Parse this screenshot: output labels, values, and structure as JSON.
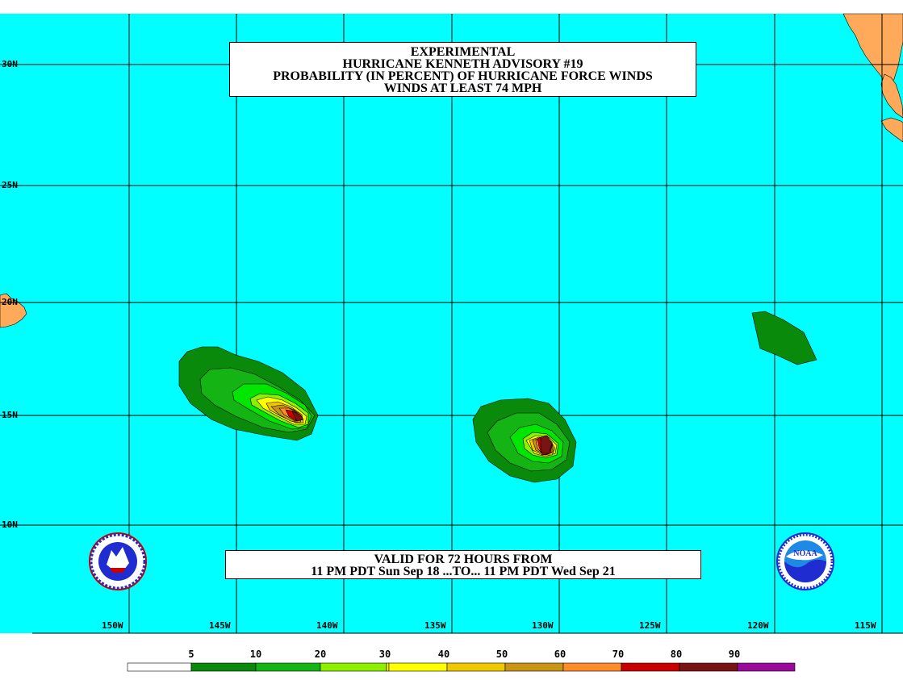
{
  "title": {
    "line1": "EXPERIMENTAL",
    "line2": "HURRICANE KENNETH ADVISORY #19",
    "line3": "PROBABILITY (IN PERCENT) OF HURRICANE FORCE WINDS",
    "line4": "WINDS AT LEAST 74 MPH"
  },
  "valid": {
    "line1": "VALID FOR 72 HOURS FROM",
    "line2": "11 PM PDT Sun Sep 18 ...TO... 11 PM PDT Wed Sep 21"
  },
  "latitude_labels": [
    "30N",
    "25N",
    "20N",
    "15N",
    "10N"
  ],
  "longitude_labels": [
    "150W",
    "145W",
    "140W",
    "135W",
    "130W",
    "125W",
    "120W",
    "115W"
  ],
  "legend": {
    "ticks": [
      "5",
      "10",
      "20",
      "30",
      "40",
      "50",
      "60",
      "70",
      "80",
      "90"
    ],
    "colors": [
      "#ffffff",
      "#0a8a0a",
      "#14b414",
      "#00e600",
      "#8cf000",
      "#ffff00",
      "#f0c800",
      "#c89614",
      "#ff8c28",
      "#c80000",
      "#781414",
      "#9a0a9a"
    ]
  },
  "map_colors": {
    "ocean": "#00ffff",
    "land": "#ffa95a",
    "grid": "#000000"
  },
  "logos": {
    "left": "nws-logo",
    "right": "noaa-logo",
    "right_text": "NOAA"
  }
}
